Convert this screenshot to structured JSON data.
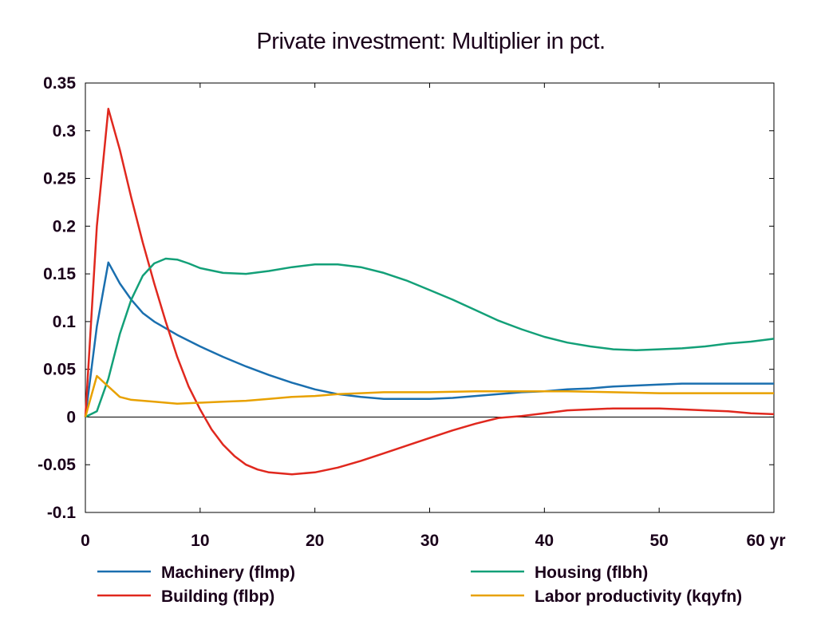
{
  "chart_data": {
    "type": "line",
    "title": "Private investment: Multiplier in pct.",
    "x_unit_label": "yr",
    "xlim": [
      0,
      60
    ],
    "ylim": [
      -0.1,
      0.35
    ],
    "x_ticks": [
      0,
      10,
      20,
      30,
      40,
      50,
      60
    ],
    "x_tick_labels": [
      "0",
      "10",
      "20",
      "30",
      "40",
      "50",
      "60 yr"
    ],
    "y_ticks": [
      -0.1,
      -0.05,
      0,
      0.05,
      0.1,
      0.15,
      0.2,
      0.25,
      0.3,
      0.35
    ],
    "y_tick_labels": [
      "-0.1",
      "-0.05",
      "0",
      "0.05",
      "0.1",
      "0.15",
      "0.2",
      "0.25",
      "0.3",
      "0.35"
    ],
    "grid": false,
    "zero_line": true,
    "legend_position": "bottom",
    "series": [
      {
        "name": "Machinery (flmp)",
        "color": "#1a6faf",
        "x": [
          0,
          1,
          2,
          3,
          4,
          5,
          6,
          8,
          10,
          12,
          14,
          16,
          18,
          20,
          22,
          24,
          26,
          28,
          30,
          32,
          34,
          36,
          38,
          40,
          42,
          44,
          46,
          48,
          50,
          52,
          54,
          56,
          58,
          60
        ],
        "y": [
          0,
          0.095,
          0.162,
          0.14,
          0.123,
          0.109,
          0.1,
          0.086,
          0.074,
          0.063,
          0.053,
          0.044,
          0.036,
          0.029,
          0.024,
          0.021,
          0.019,
          0.019,
          0.019,
          0.02,
          0.022,
          0.024,
          0.026,
          0.027,
          0.029,
          0.03,
          0.032,
          0.033,
          0.034,
          0.035,
          0.035,
          0.035,
          0.035,
          0.035
        ]
      },
      {
        "name": "Building (flbp)",
        "color": "#e0281e",
        "x": [
          0,
          1,
          2,
          3,
          4,
          5,
          6,
          7,
          8,
          9,
          10,
          11,
          12,
          13,
          14,
          15,
          16,
          17,
          18,
          19,
          20,
          22,
          24,
          26,
          28,
          30,
          32,
          34,
          36,
          38,
          40,
          42,
          44,
          46,
          48,
          50,
          52,
          54,
          56,
          58,
          60
        ],
        "y": [
          0,
          0.2,
          0.323,
          0.28,
          0.23,
          0.183,
          0.14,
          0.1,
          0.063,
          0.032,
          0.008,
          -0.013,
          -0.029,
          -0.041,
          -0.05,
          -0.055,
          -0.058,
          -0.059,
          -0.06,
          -0.059,
          -0.058,
          -0.053,
          -0.046,
          -0.038,
          -0.03,
          -0.022,
          -0.014,
          -0.007,
          -0.001,
          0.001,
          0.004,
          0.007,
          0.008,
          0.009,
          0.009,
          0.009,
          0.008,
          0.007,
          0.006,
          0.004,
          0.003
        ]
      },
      {
        "name": "Housing (flbh)",
        "color": "#13a078",
        "x": [
          0,
          1,
          2,
          3,
          4,
          5,
          6,
          7,
          8,
          9,
          10,
          12,
          14,
          16,
          18,
          20,
          22,
          24,
          26,
          28,
          30,
          32,
          34,
          36,
          38,
          40,
          42,
          44,
          46,
          48,
          50,
          52,
          54,
          56,
          58,
          60
        ],
        "y": [
          0,
          0.006,
          0.04,
          0.087,
          0.123,
          0.148,
          0.161,
          0.166,
          0.165,
          0.161,
          0.156,
          0.151,
          0.15,
          0.153,
          0.157,
          0.16,
          0.16,
          0.157,
          0.151,
          0.143,
          0.133,
          0.123,
          0.112,
          0.101,
          0.092,
          0.084,
          0.078,
          0.074,
          0.071,
          0.07,
          0.071,
          0.072,
          0.074,
          0.077,
          0.079,
          0.082
        ]
      },
      {
        "name": "Labor productivity (kqyfn)",
        "color": "#e8a100",
        "x": [
          0,
          1,
          2,
          3,
          4,
          6,
          8,
          10,
          12,
          14,
          16,
          18,
          20,
          22,
          24,
          26,
          28,
          30,
          34,
          38,
          42,
          46,
          50,
          54,
          58,
          60
        ],
        "y": [
          0,
          0.043,
          0.032,
          0.021,
          0.018,
          0.016,
          0.014,
          0.015,
          0.016,
          0.017,
          0.019,
          0.021,
          0.022,
          0.024,
          0.025,
          0.026,
          0.026,
          0.026,
          0.027,
          0.027,
          0.027,
          0.026,
          0.025,
          0.025,
          0.025,
          0.025
        ]
      }
    ]
  }
}
